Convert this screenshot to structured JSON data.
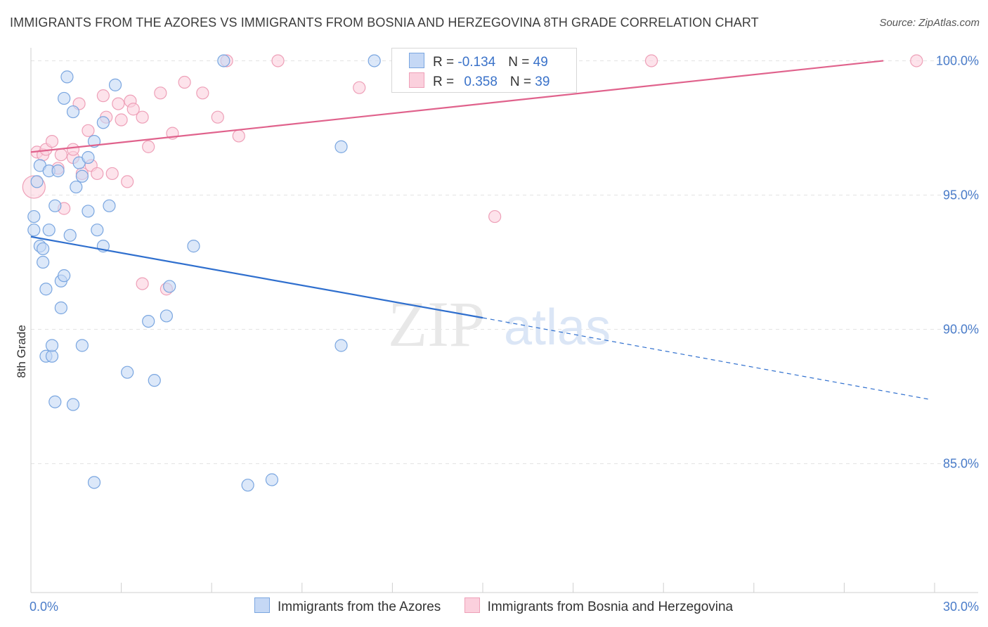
{
  "title": "IMMIGRANTS FROM THE AZORES VS IMMIGRANTS FROM BOSNIA AND HERZEGOVINA 8TH GRADE CORRELATION CHART",
  "source": "Source: ZipAtlas.com",
  "watermark": {
    "zip": "ZIP",
    "atlas": "atlas"
  },
  "legend": {
    "series1": {
      "r_label": "R = ",
      "r_value": "-0.134",
      "n_label": "N = ",
      "n_value": "49"
    },
    "series2": {
      "r_label": "R = ",
      "r_value": "0.358",
      "n_label": "N = ",
      "n_value": "39"
    }
  },
  "colors": {
    "blue_fill": "#c5d8f5",
    "blue_stroke": "#7aa6e0",
    "blue_line": "#2f6fce",
    "pink_fill": "#fbd0dd",
    "pink_stroke": "#eea0b8",
    "pink_line": "#e0628c",
    "grid": "#e3e3e3",
    "tick_text": "#4a7cc9"
  },
  "chart_data": {
    "type": "scatter",
    "title": "IMMIGRANTS FROM THE AZORES VS IMMIGRANTS FROM BOSNIA AND HERZEGOVINA 8TH GRADE CORRELATION CHART",
    "xlabel": "",
    "ylabel": "8th Grade",
    "xlim": [
      0,
      30
    ],
    "ylim": [
      80.2,
      100.3
    ],
    "x_tick_labels": [
      "0.0%",
      "30.0%"
    ],
    "y_ticks": [
      {
        "value": 100,
        "label": "100.0%"
      },
      {
        "value": 95,
        "label": "95.0%"
      },
      {
        "value": 90,
        "label": "90.0%"
      },
      {
        "value": 85,
        "label": "85.0%"
      }
    ],
    "series": [
      {
        "name": "Immigrants from the Azores",
        "color": "blue",
        "trend": {
          "x0": 0,
          "y0": 93.45,
          "x1": 15.0,
          "y1": 90.43,
          "dashed_to_x": 29.8,
          "dashed_to_y": 87.4
        },
        "points": [
          [
            0.1,
            94.2
          ],
          [
            0.1,
            93.7
          ],
          [
            0.2,
            95.5
          ],
          [
            0.3,
            96.1
          ],
          [
            0.3,
            93.1
          ],
          [
            0.4,
            92.5
          ],
          [
            0.4,
            93.0
          ],
          [
            0.5,
            91.5
          ],
          [
            0.5,
            89.0
          ],
          [
            0.6,
            93.7
          ],
          [
            0.6,
            95.9
          ],
          [
            0.7,
            89.0
          ],
          [
            0.7,
            89.4
          ],
          [
            0.8,
            87.3
          ],
          [
            0.8,
            94.6
          ],
          [
            0.9,
            95.9
          ],
          [
            1.0,
            90.8
          ],
          [
            1.0,
            91.8
          ],
          [
            1.1,
            92.0
          ],
          [
            1.1,
            98.6
          ],
          [
            1.2,
            99.4
          ],
          [
            1.3,
            93.5
          ],
          [
            1.4,
            98.1
          ],
          [
            1.4,
            87.2
          ],
          [
            1.5,
            95.3
          ],
          [
            1.6,
            96.2
          ],
          [
            1.7,
            89.4
          ],
          [
            1.7,
            95.7
          ],
          [
            1.9,
            94.4
          ],
          [
            1.9,
            96.4
          ],
          [
            2.1,
            97.0
          ],
          [
            2.1,
            84.3
          ],
          [
            2.2,
            93.7
          ],
          [
            2.4,
            93.1
          ],
          [
            2.4,
            97.7
          ],
          [
            2.6,
            94.6
          ],
          [
            2.8,
            99.1
          ],
          [
            3.2,
            88.4
          ],
          [
            3.9,
            90.3
          ],
          [
            4.1,
            88.1
          ],
          [
            4.5,
            90.5
          ],
          [
            4.6,
            91.6
          ],
          [
            5.4,
            93.1
          ],
          [
            7.2,
            84.2
          ],
          [
            8.0,
            84.4
          ],
          [
            10.3,
            89.4
          ],
          [
            10.3,
            96.8
          ],
          [
            11.4,
            100.0
          ],
          [
            6.4,
            100.0
          ]
        ]
      },
      {
        "name": "Immigrants from Bosnia and Herzegovina",
        "color": "pink",
        "trend": {
          "x0": 0,
          "y0": 96.6,
          "x1": 28.3,
          "y1": 100.0
        },
        "points": [
          [
            0.1,
            95.3
          ],
          [
            0.2,
            96.6
          ],
          [
            0.4,
            96.5
          ],
          [
            0.5,
            96.7
          ],
          [
            0.7,
            97.0
          ],
          [
            0.9,
            96.0
          ],
          [
            1.0,
            96.5
          ],
          [
            1.1,
            94.5
          ],
          [
            1.4,
            96.4
          ],
          [
            1.4,
            96.7
          ],
          [
            1.6,
            98.4
          ],
          [
            1.7,
            95.8
          ],
          [
            1.9,
            97.4
          ],
          [
            2.0,
            96.1
          ],
          [
            2.2,
            95.8
          ],
          [
            2.4,
            98.7
          ],
          [
            2.5,
            97.9
          ],
          [
            2.7,
            95.8
          ],
          [
            2.9,
            98.4
          ],
          [
            3.0,
            97.8
          ],
          [
            3.2,
            95.5
          ],
          [
            3.3,
            98.5
          ],
          [
            3.4,
            98.2
          ],
          [
            3.7,
            97.9
          ],
          [
            3.7,
            91.7
          ],
          [
            3.9,
            96.8
          ],
          [
            4.3,
            98.8
          ],
          [
            4.5,
            91.5
          ],
          [
            4.7,
            97.3
          ],
          [
            5.1,
            99.2
          ],
          [
            5.7,
            98.8
          ],
          [
            6.2,
            97.9
          ],
          [
            6.5,
            100.0
          ],
          [
            6.9,
            97.2
          ],
          [
            8.2,
            100.0
          ],
          [
            10.9,
            99.0
          ],
          [
            15.4,
            94.2
          ],
          [
            20.6,
            100.0
          ],
          [
            29.4,
            100.0
          ]
        ]
      }
    ]
  },
  "bottom_legend": {
    "item1": "Immigrants from the Azores",
    "item2": "Immigrants from Bosnia and Herzegovina"
  }
}
